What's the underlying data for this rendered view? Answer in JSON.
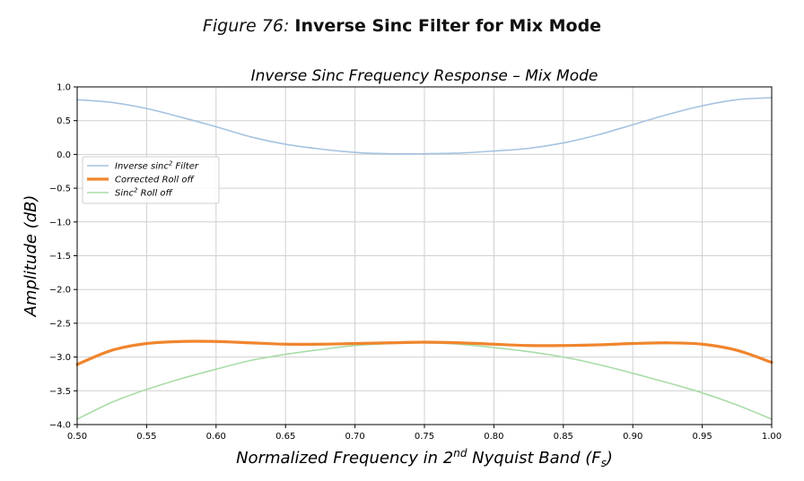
{
  "figure": {
    "label": "Figure 76:",
    "title": "Inverse Sinc Filter for Mix Mode"
  },
  "chart_data": {
    "type": "line",
    "title": "Inverse Sinc Frequency Response – Mix Mode",
    "xlabel": "Normalized Frequency in 2nd Nyquist Band (Fs)",
    "xlabel_parts": {
      "pre": "Normalized Frequency in 2",
      "sup": "nd",
      "mid": " Nyquist Band (",
      "var": "F",
      "sub": "s",
      "post": ")"
    },
    "ylabel": "Amplitude (dB)",
    "xlim": [
      0.5,
      1.0
    ],
    "ylim": [
      -4.0,
      1.0
    ],
    "xticks": [
      0.5,
      0.55,
      0.6,
      0.65,
      0.7,
      0.75,
      0.8,
      0.85,
      0.9,
      0.95,
      1.0
    ],
    "xtick_labels": [
      "0.50",
      "0.55",
      "0.60",
      "0.65",
      "0.70",
      "0.75",
      "0.80",
      "0.85",
      "0.90",
      "0.95",
      "1.00"
    ],
    "yticks": [
      1.0,
      0.5,
      0.0,
      -0.5,
      -1.0,
      -1.5,
      -2.0,
      -2.5,
      -3.0,
      -3.5,
      -4.0
    ],
    "ytick_labels": [
      "1.0",
      "0.5",
      "0.0",
      "−0.5",
      "−1.0",
      "−1.5",
      "−2.0",
      "−2.5",
      "−3.0",
      "−3.5",
      "−4.0"
    ],
    "grid": true,
    "legend_position": "upper-left",
    "series": [
      {
        "name": "Inverse sinc² Filter",
        "legend_parts": {
          "pre": "Inverse sinc",
          "sup": "2",
          "post": " Filter"
        },
        "color": "#a6c3e0",
        "line_width": "thin",
        "x": [
          0.5,
          0.525,
          0.55,
          0.575,
          0.6,
          0.625,
          0.65,
          0.675,
          0.7,
          0.725,
          0.75,
          0.775,
          0.8,
          0.825,
          0.85,
          0.875,
          0.9,
          0.925,
          0.95,
          0.975,
          1.0
        ],
        "y": [
          0.81,
          0.77,
          0.68,
          0.55,
          0.41,
          0.26,
          0.15,
          0.08,
          0.03,
          0.01,
          0.01,
          0.02,
          0.05,
          0.09,
          0.17,
          0.29,
          0.44,
          0.59,
          0.72,
          0.81,
          0.84
        ]
      },
      {
        "name": "Corrected Roll off",
        "legend_parts": {
          "pre": "Corrected Roll off",
          "sup": "",
          "post": ""
        },
        "color": "#f0852d",
        "line_width": "thick",
        "x": [
          0.5,
          0.525,
          0.55,
          0.575,
          0.6,
          0.625,
          0.65,
          0.675,
          0.7,
          0.725,
          0.75,
          0.775,
          0.8,
          0.825,
          0.85,
          0.875,
          0.9,
          0.925,
          0.95,
          0.975,
          1.0
        ],
        "y": [
          -3.11,
          -2.9,
          -2.8,
          -2.77,
          -2.77,
          -2.79,
          -2.81,
          -2.81,
          -2.8,
          -2.79,
          -2.78,
          -2.79,
          -2.81,
          -2.83,
          -2.83,
          -2.82,
          -2.8,
          -2.79,
          -2.81,
          -2.9,
          -3.08
        ]
      },
      {
        "name": "Sinc² Roll off",
        "legend_parts": {
          "pre": "Sinc",
          "sup": "2",
          "post": " Roll off"
        },
        "color": "#a8dca8",
        "line_width": "thin",
        "x": [
          0.5,
          0.525,
          0.55,
          0.575,
          0.6,
          0.625,
          0.65,
          0.675,
          0.7,
          0.725,
          0.75,
          0.775,
          0.8,
          0.825,
          0.85,
          0.875,
          0.9,
          0.925,
          0.95,
          0.975,
          1.0
        ],
        "y": [
          -3.92,
          -3.67,
          -3.48,
          -3.32,
          -3.18,
          -3.05,
          -2.96,
          -2.89,
          -2.83,
          -2.8,
          -2.79,
          -2.81,
          -2.86,
          -2.92,
          -3.0,
          -3.11,
          -3.24,
          -3.38,
          -3.53,
          -3.71,
          -3.92
        ]
      }
    ]
  }
}
